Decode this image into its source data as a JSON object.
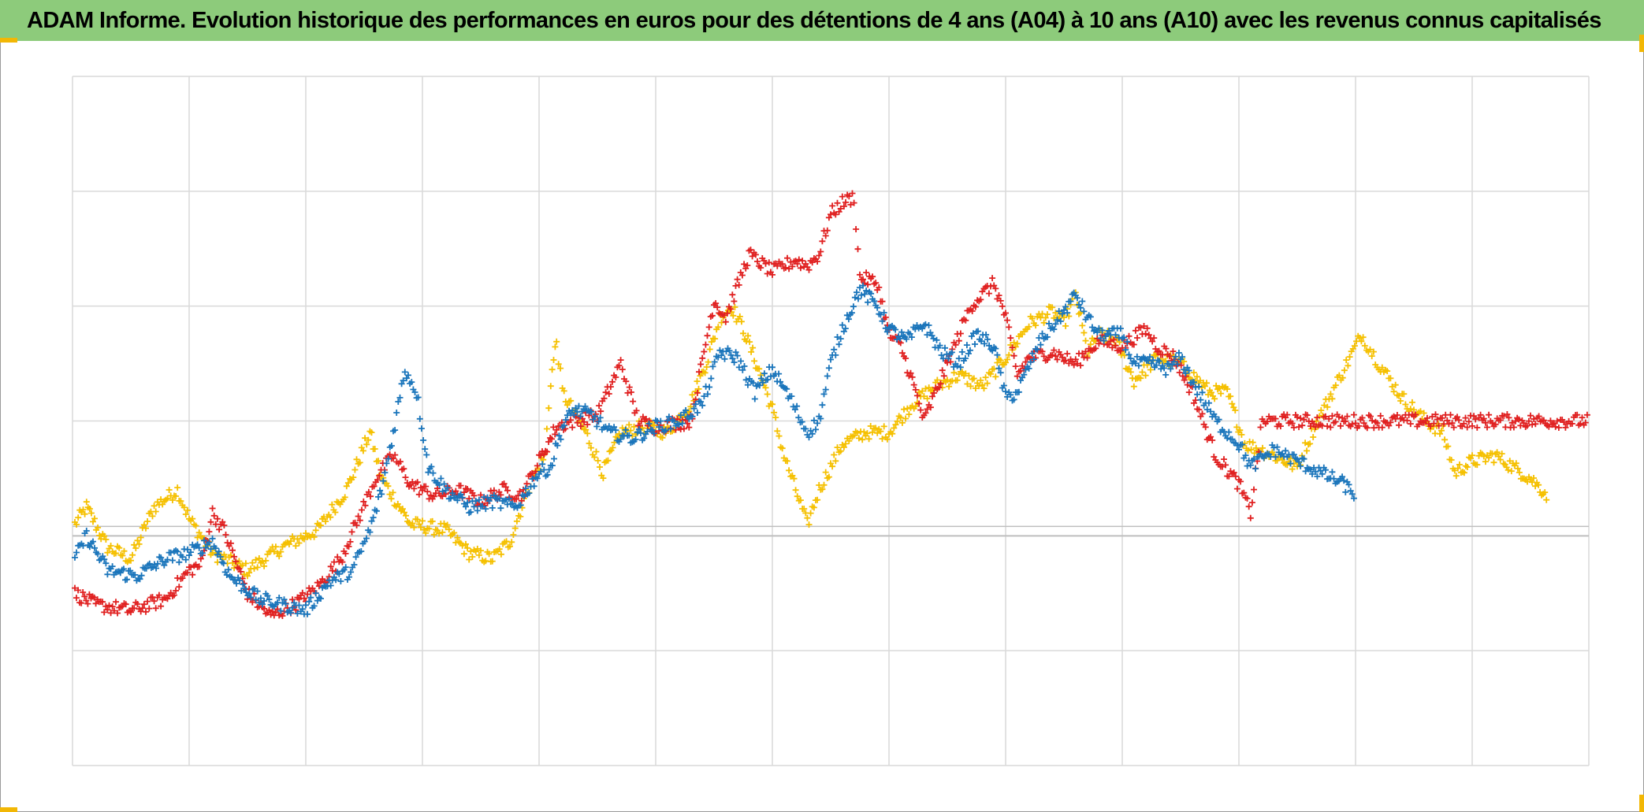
{
  "title": "ADAM Informe. Evolution historique des performances en euros pour des détentions de 4 ans (A04) à 10 ans (A10) avec les revenus connus capitalisés",
  "colors": {
    "title_bar": "#8dcb7b",
    "accent_corner": "#f2b705",
    "grid": "#d9d9d9",
    "zero_line": "#bfbfbf",
    "frame": "#9a9a9a"
  },
  "chart_data": {
    "type": "scatter",
    "marker": "plus",
    "grid": true,
    "legend": "none",
    "x_ticks_shown": false,
    "y_ticks_shown": false,
    "xlim": [
      0,
      13
    ],
    "ylim": [
      -3,
      3
    ],
    "reference_line_y": -1.0,
    "series": [
      {
        "color": "#f5c000",
        "points": [
          [
            0.02,
            -0.9
          ],
          [
            0.12,
            -0.75
          ],
          [
            0.3,
            -1.1
          ],
          [
            0.5,
            -1.2
          ],
          [
            0.7,
            -0.75
          ],
          [
            0.9,
            -0.6
          ],
          [
            1.0,
            -0.85
          ],
          [
            1.2,
            -1.15
          ],
          [
            1.5,
            -1.3
          ],
          [
            1.8,
            -1.1
          ],
          [
            2.1,
            -0.95
          ],
          [
            2.35,
            -0.6
          ],
          [
            2.55,
            -0.1
          ],
          [
            2.65,
            -0.5
          ],
          [
            2.9,
            -0.9
          ],
          [
            3.2,
            -0.95
          ],
          [
            3.4,
            -1.15
          ],
          [
            3.6,
            -1.2
          ],
          [
            3.75,
            -1.05
          ],
          [
            3.9,
            -0.6
          ],
          [
            4.05,
            -0.3
          ],
          [
            4.1,
            0.35
          ],
          [
            4.15,
            0.7
          ],
          [
            4.2,
            0.25
          ],
          [
            4.4,
            -0.1
          ],
          [
            4.55,
            -0.45
          ],
          [
            4.7,
            -0.1
          ],
          [
            4.9,
            -0.05
          ],
          [
            5.1,
            -0.1
          ],
          [
            5.3,
            0.15
          ],
          [
            5.45,
            0.55
          ],
          [
            5.55,
            0.9
          ],
          [
            5.65,
            1.0
          ],
          [
            5.75,
            0.8
          ],
          [
            5.9,
            0.4
          ],
          [
            6.0,
            0.1
          ],
          [
            6.1,
            -0.3
          ],
          [
            6.2,
            -0.6
          ],
          [
            6.3,
            -0.9
          ],
          [
            6.4,
            -0.6
          ],
          [
            6.6,
            -0.2
          ],
          [
            6.8,
            -0.1
          ],
          [
            7.0,
            -0.1
          ],
          [
            7.2,
            0.15
          ],
          [
            7.4,
            0.3
          ],
          [
            7.6,
            0.4
          ],
          [
            7.8,
            0.3
          ],
          [
            8.0,
            0.55
          ],
          [
            8.2,
            0.85
          ],
          [
            8.4,
            0.95
          ],
          [
            8.5,
            0.85
          ],
          [
            8.6,
            1.1
          ],
          [
            8.7,
            0.6
          ],
          [
            8.8,
            0.75
          ],
          [
            8.95,
            0.7
          ],
          [
            9.1,
            0.35
          ],
          [
            9.3,
            0.55
          ],
          [
            9.5,
            0.5
          ],
          [
            9.6,
            0.4
          ],
          [
            9.75,
            0.25
          ],
          [
            9.9,
            0.25
          ],
          [
            10.05,
            -0.2
          ],
          [
            10.3,
            -0.3
          ],
          [
            10.5,
            -0.4
          ],
          [
            10.65,
            -0.05
          ],
          [
            10.8,
            0.25
          ],
          [
            10.95,
            0.55
          ],
          [
            11.05,
            0.75
          ],
          [
            11.2,
            0.5
          ],
          [
            11.4,
            0.2
          ],
          [
            11.6,
            0.0
          ],
          [
            11.75,
            -0.1
          ],
          [
            11.85,
            -0.45
          ],
          [
            12.0,
            -0.35
          ],
          [
            12.2,
            -0.3
          ],
          [
            12.35,
            -0.4
          ],
          [
            12.5,
            -0.5
          ],
          [
            12.65,
            -0.65
          ]
        ]
      },
      {
        "color": "#e02020",
        "points": [
          [
            0.02,
            -1.5
          ],
          [
            0.2,
            -1.6
          ],
          [
            0.5,
            -1.65
          ],
          [
            0.8,
            -1.55
          ],
          [
            1.0,
            -1.3
          ],
          [
            1.1,
            -1.25
          ],
          [
            1.2,
            -0.8
          ],
          [
            1.3,
            -0.95
          ],
          [
            1.5,
            -1.5
          ],
          [
            1.7,
            -1.7
          ],
          [
            1.9,
            -1.6
          ],
          [
            2.1,
            -1.45
          ],
          [
            2.3,
            -1.2
          ],
          [
            2.45,
            -0.85
          ],
          [
            2.6,
            -0.5
          ],
          [
            2.75,
            -0.3
          ],
          [
            2.9,
            -0.55
          ],
          [
            3.1,
            -0.65
          ],
          [
            3.3,
            -0.6
          ],
          [
            3.5,
            -0.7
          ],
          [
            3.7,
            -0.6
          ],
          [
            3.85,
            -0.65
          ],
          [
            4.0,
            -0.35
          ],
          [
            4.15,
            -0.05
          ],
          [
            4.3,
            -0.0
          ],
          [
            4.5,
            0.05
          ],
          [
            4.7,
            0.5
          ],
          [
            4.85,
            -0.0
          ],
          [
            5.0,
            -0.05
          ],
          [
            5.3,
            -0.0
          ],
          [
            5.5,
            1.05
          ],
          [
            5.6,
            0.9
          ],
          [
            5.8,
            1.45
          ],
          [
            6.0,
            1.3
          ],
          [
            6.2,
            1.4
          ],
          [
            6.3,
            1.35
          ],
          [
            6.4,
            1.45
          ],
          [
            6.5,
            1.8
          ],
          [
            6.6,
            1.9
          ],
          [
            6.7,
            1.95
          ],
          [
            6.75,
            1.25
          ],
          [
            6.9,
            1.2
          ],
          [
            7.0,
            0.75
          ],
          [
            7.1,
            0.65
          ],
          [
            7.2,
            0.35
          ],
          [
            7.3,
            0.0
          ],
          [
            7.5,
            0.5
          ],
          [
            7.7,
            1.0
          ],
          [
            7.9,
            1.2
          ],
          [
            8.0,
            0.9
          ],
          [
            8.1,
            0.4
          ],
          [
            8.2,
            0.55
          ],
          [
            8.4,
            0.6
          ],
          [
            8.6,
            0.5
          ],
          [
            8.8,
            0.7
          ],
          [
            9.0,
            0.65
          ],
          [
            9.2,
            0.8
          ],
          [
            9.3,
            0.65
          ],
          [
            9.45,
            0.55
          ],
          [
            9.6,
            0.25
          ],
          [
            9.8,
            -0.3
          ],
          [
            10.0,
            -0.55
          ],
          [
            10.1,
            -0.8
          ],
          [
            10.2,
            -0.0
          ],
          [
            10.4,
            -0.0
          ],
          [
            10.7,
            -0.0
          ],
          [
            11.0,
            -0.0
          ],
          [
            11.3,
            -0.0
          ],
          [
            11.6,
            -0.0
          ],
          [
            11.9,
            -0.0
          ],
          [
            12.2,
            -0.0
          ],
          [
            12.5,
            -0.0
          ],
          [
            12.8,
            -0.0
          ],
          [
            13.0,
            -0.0
          ]
        ]
      },
      {
        "color": "#1a75bb",
        "points": [
          [
            0.02,
            -1.2
          ],
          [
            0.12,
            -1.0
          ],
          [
            0.3,
            -1.3
          ],
          [
            0.55,
            -1.35
          ],
          [
            0.8,
            -1.2
          ],
          [
            1.0,
            -1.15
          ],
          [
            1.2,
            -1.05
          ],
          [
            1.35,
            -1.35
          ],
          [
            1.6,
            -1.55
          ],
          [
            1.8,
            -1.6
          ],
          [
            2.0,
            -1.65
          ],
          [
            2.2,
            -1.4
          ],
          [
            2.4,
            -1.3
          ],
          [
            2.55,
            -0.95
          ],
          [
            2.65,
            -0.6
          ],
          [
            2.75,
            -0.1
          ],
          [
            2.85,
            0.45
          ],
          [
            2.95,
            0.25
          ],
          [
            3.05,
            -0.4
          ],
          [
            3.2,
            -0.6
          ],
          [
            3.4,
            -0.75
          ],
          [
            3.6,
            -0.7
          ],
          [
            3.8,
            -0.75
          ],
          [
            4.0,
            -0.45
          ],
          [
            4.1,
            -0.4
          ],
          [
            4.2,
            -0.05
          ],
          [
            4.3,
            0.1
          ],
          [
            4.45,
            0.05
          ],
          [
            4.6,
            -0.1
          ],
          [
            4.8,
            -0.15
          ],
          [
            5.0,
            -0.05
          ],
          [
            5.2,
            0.0
          ],
          [
            5.4,
            0.15
          ],
          [
            5.55,
            0.6
          ],
          [
            5.7,
            0.55
          ],
          [
            5.85,
            0.25
          ],
          [
            6.0,
            0.45
          ],
          [
            6.15,
            0.2
          ],
          [
            6.3,
            -0.1
          ],
          [
            6.4,
            0.0
          ],
          [
            6.5,
            0.5
          ],
          [
            6.6,
            0.8
          ],
          [
            6.75,
            1.15
          ],
          [
            6.9,
            1.0
          ],
          [
            7.0,
            0.8
          ],
          [
            7.15,
            0.7
          ],
          [
            7.3,
            0.85
          ],
          [
            7.45,
            0.6
          ],
          [
            7.6,
            0.5
          ],
          [
            7.75,
            0.75
          ],
          [
            7.9,
            0.65
          ],
          [
            8.0,
            0.2
          ],
          [
            8.1,
            0.25
          ],
          [
            8.3,
            0.7
          ],
          [
            8.5,
            0.95
          ],
          [
            8.6,
            1.1
          ],
          [
            8.7,
            0.9
          ],
          [
            8.8,
            0.75
          ],
          [
            9.0,
            0.75
          ],
          [
            9.1,
            0.5
          ],
          [
            9.25,
            0.5
          ],
          [
            9.4,
            0.45
          ],
          [
            9.5,
            0.55
          ],
          [
            9.6,
            0.35
          ],
          [
            9.8,
            0.0
          ],
          [
            10.0,
            -0.2
          ],
          [
            10.1,
            -0.4
          ],
          [
            10.3,
            -0.25
          ],
          [
            10.5,
            -0.35
          ],
          [
            10.7,
            -0.45
          ],
          [
            10.9,
            -0.55
          ],
          [
            11.0,
            -0.65
          ]
        ]
      }
    ]
  }
}
